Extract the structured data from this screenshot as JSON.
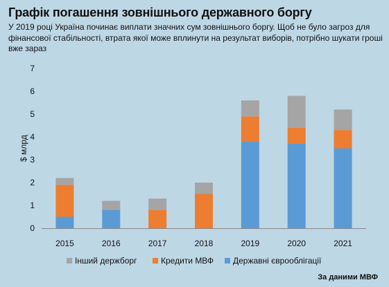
{
  "title": "Графік погашення зовнішнього державного боргу",
  "subtitle": "У 2019 році Україна починає виплати значних сум зовнішнього боргу. Щоб не було загроз для фінансової стабільності, втрата якої може вплинути на результат виборів, потрібно шукати гроші вже зараз",
  "source": "За даними МВФ",
  "chart_data": {
    "type": "bar",
    "stacked": true,
    "categories": [
      "2015",
      "2016",
      "2017",
      "2018",
      "2019",
      "2020",
      "2021"
    ],
    "series": [
      {
        "name": "Державні єврооблігації",
        "color": "#5b9bd5",
        "values": [
          0.5,
          0.8,
          0.0,
          0.0,
          3.8,
          3.7,
          3.5
        ]
      },
      {
        "name": "Кредити МВФ",
        "color": "#ed7d31",
        "values": [
          1.4,
          0.0,
          0.8,
          1.5,
          1.1,
          0.7,
          0.8
        ]
      },
      {
        "name": "Інший держборг",
        "color": "#a5a5a5",
        "values": [
          0.3,
          0.4,
          0.5,
          0.5,
          0.7,
          1.4,
          0.9
        ]
      }
    ],
    "legend_order": [
      "Інший держборг",
      "Кредити МВФ",
      "Державні єврооблігації"
    ],
    "ylabel": "$ млрд",
    "xlabel": "",
    "ylim": [
      0,
      7
    ],
    "yticks": [
      0,
      1,
      2,
      3,
      4,
      5,
      6,
      7
    ],
    "legend_position": "bottom",
    "grid": false
  }
}
